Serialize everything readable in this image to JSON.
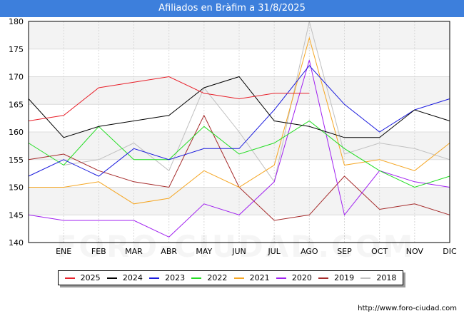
{
  "title": "Afiliados en Bràfim a 31/8/2025",
  "source": "http://www.foro-ciudad.com",
  "watermark": "FORO-CIUDAD.COM",
  "chart_data": {
    "type": "line",
    "title": "Afiliados en Bràfim a 31/8/2025",
    "xlabel": "",
    "ylabel": "",
    "categories": [
      "",
      "ENE",
      "FEB",
      "MAR",
      "ABR",
      "MAY",
      "JUN",
      "JUL",
      "AGO",
      "SEP",
      "OCT",
      "NOV",
      "DIC"
    ],
    "ylim": [
      140,
      180
    ],
    "yticks": [
      140,
      145,
      150,
      155,
      160,
      165,
      170,
      175,
      180
    ],
    "grid": true,
    "legend_position": "bottom",
    "series": [
      {
        "name": "2025",
        "color": "#e8202a",
        "values": [
          162,
          163,
          168,
          169,
          170,
          167,
          166,
          167,
          167,
          null,
          null,
          null,
          null
        ]
      },
      {
        "name": "2024",
        "color": "#000000",
        "values": [
          166,
          159,
          161,
          162,
          163,
          168,
          170,
          162,
          161,
          159,
          159,
          164,
          162
        ]
      },
      {
        "name": "2023",
        "color": "#1a1add",
        "values": [
          152,
          155,
          152,
          157,
          155,
          157,
          157,
          164,
          172,
          165,
          160,
          164,
          166
        ]
      },
      {
        "name": "2022",
        "color": "#22dd22",
        "values": [
          158,
          154,
          161,
          155,
          155,
          161,
          156,
          158,
          162,
          157,
          153,
          150,
          152
        ]
      },
      {
        "name": "2021",
        "color": "#f5a623",
        "values": [
          150,
          150,
          151,
          147,
          148,
          153,
          150,
          154,
          177,
          154,
          155,
          153,
          158
        ]
      },
      {
        "name": "2020",
        "color": "#a020f0",
        "values": [
          145,
          144,
          144,
          144,
          141,
          147,
          145,
          151,
          173,
          145,
          153,
          151,
          150
        ]
      },
      {
        "name": "2019",
        "color": "#a52a2a",
        "values": [
          155,
          156,
          153,
          151,
          150,
          163,
          150,
          144,
          145,
          152,
          146,
          147,
          145
        ]
      },
      {
        "name": "2018",
        "color": "#c0c0c0",
        "values": [
          null,
          154,
          155,
          158,
          153,
          168,
          160,
          151,
          180,
          156,
          158,
          157,
          155
        ]
      }
    ]
  }
}
